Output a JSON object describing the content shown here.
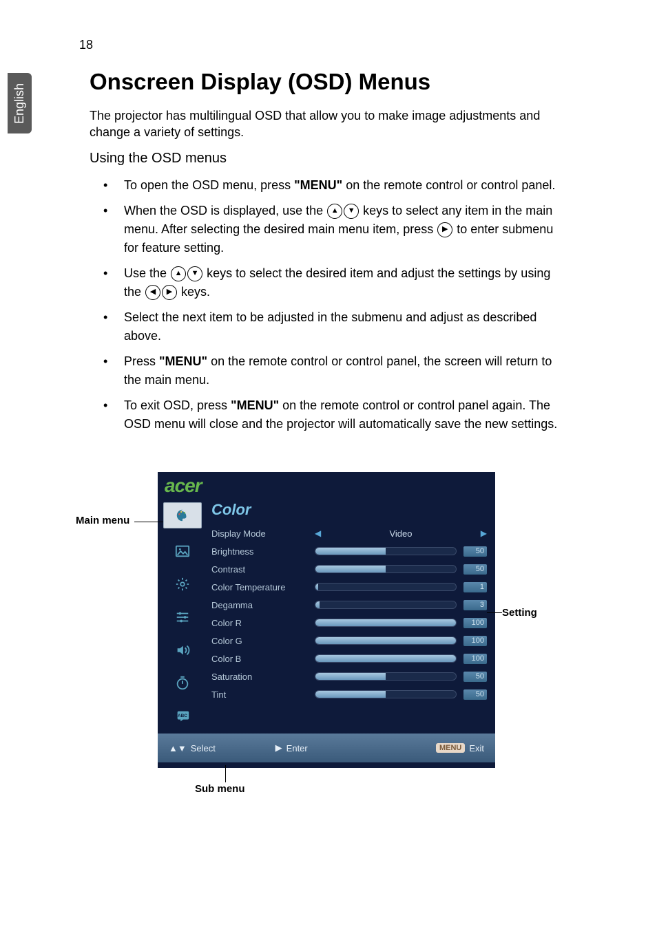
{
  "page_number": "18",
  "language_tab": "English",
  "heading": "Onscreen Display (OSD) Menus",
  "intro": "The projector has multilingual OSD that allow you to make image adjustments and change a variety of settings.",
  "subheading": "Using the OSD menus",
  "bullets": {
    "b1a": "To open the OSD menu, press ",
    "b1b": "\"MENU\"",
    "b1c": " on the remote control or control panel.",
    "b2a": "When the OSD is displayed, use the ",
    "b2b": " keys to select any item in the main menu. After selecting the desired main menu item, press ",
    "b2c": " to enter submenu for feature setting.",
    "b3a": "Use the ",
    "b3b": " keys to select the desired item and adjust the settings by using the ",
    "b3c": " keys.",
    "b4": "Select the next item to be adjusted in the submenu and adjust as described above.",
    "b5a": "Press ",
    "b5b": "\"MENU\"",
    "b5c": " on the remote control or control panel, the screen will return to the main menu.",
    "b6a": "To exit OSD, press ",
    "b6b": "\"MENU\"",
    "b6c": " on the remote control or control panel again. The OSD menu will close and the projector will automatically save the new settings."
  },
  "callouts": {
    "main_menu": "Main menu",
    "sub_menu": "Sub menu",
    "setting": "Setting"
  },
  "osd": {
    "logo": "acer",
    "title": "Color",
    "items": [
      {
        "label": "Display Mode",
        "type": "selector",
        "value": "Video"
      },
      {
        "label": "Brightness",
        "type": "bar",
        "value": 50
      },
      {
        "label": "Contrast",
        "type": "bar",
        "value": 50
      },
      {
        "label": "Color Temperature",
        "type": "bar",
        "value": 1
      },
      {
        "label": "Degamma",
        "type": "bar",
        "value": 3
      },
      {
        "label": "Color R",
        "type": "bar",
        "value": 100
      },
      {
        "label": "Color G",
        "type": "bar",
        "value": 100
      },
      {
        "label": "Color B",
        "type": "bar",
        "value": 100
      },
      {
        "label": "Saturation",
        "type": "bar",
        "value": 50
      },
      {
        "label": "Tint",
        "type": "bar",
        "value": 50
      }
    ],
    "footer": {
      "select": "Select",
      "enter": "Enter",
      "menu": "MENU",
      "exit": "Exit"
    },
    "colors": {
      "bg": "#0e1a3a",
      "logo": "#68b84d",
      "title": "#7fc7e8",
      "row_text": "#b5c8d8",
      "bar_fill_top": "#a8c8e0",
      "bar_fill_bottom": "#6a98bc",
      "footer_top": "#5a7a9a",
      "footer_bottom": "#3a5a7a"
    }
  }
}
